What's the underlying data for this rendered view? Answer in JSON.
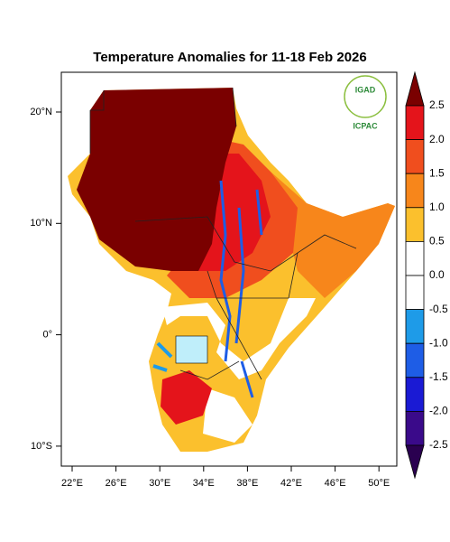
{
  "title": "Temperature Anomalies for 11-18 Feb 2026",
  "logo": {
    "top": "IGAD",
    "bottom": "ICPAC"
  },
  "lat_labels": [
    "20°N",
    "10°N",
    "0°",
    "10°S"
  ],
  "lon_labels": [
    "22°E",
    "26°E",
    "30°E",
    "34°E",
    "38°E",
    "42°E",
    "46°E",
    "50°E"
  ],
  "colorbar_labels": [
    "2.5",
    "2.0",
    "1.5",
    "1.0",
    "0.5",
    "0.0",
    "-0.5",
    "-1.0",
    "-1.5",
    "-2.0",
    "-2.5"
  ]
}
